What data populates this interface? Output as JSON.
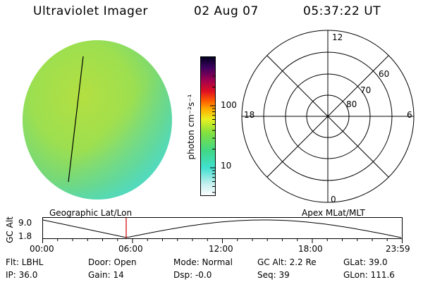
{
  "header": {
    "instrument": "Ultraviolet Imager",
    "date": "02 Aug 07",
    "time": "05:37:22 UT"
  },
  "colorbar": {
    "label": "photon cm⁻²s⁻¹",
    "ticks": [
      "100",
      "10"
    ]
  },
  "polar": {
    "mlt_labels": [
      "12",
      "18",
      "6",
      "0"
    ],
    "lat_labels": [
      "60",
      "70",
      "80"
    ]
  },
  "timeline": {
    "left_title": "Geographic Lat/Lon",
    "right_title": "Apex MLat/MLT",
    "ylabel": "GC Alt",
    "y_ticks": [
      "9.0",
      "1.8"
    ],
    "x_ticks": [
      "00:00",
      "06:00",
      "12:00",
      "18:00",
      "23:59"
    ],
    "marker_color": "#cc0000"
  },
  "info": {
    "flt": "Flt: LBHL",
    "ip": "IP: 36.0",
    "door": "Door: Open",
    "gain": "Gain: 14",
    "mode": "Mode: Normal",
    "dsp": "Dsp:   -0.0",
    "gc_alt": "GC Alt: 2.2 Re",
    "seq": "Seq: 39",
    "glat": "GLat:  39.0",
    "glon": "GLon: 111.6"
  }
}
